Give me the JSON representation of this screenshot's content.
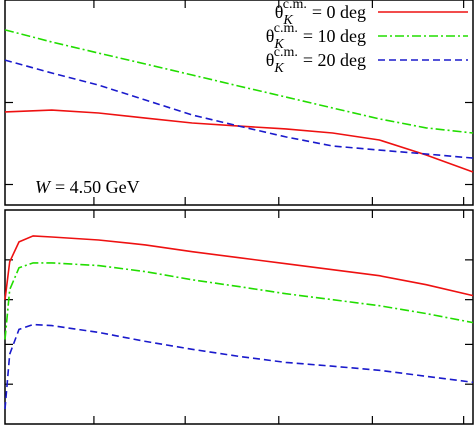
{
  "chart_data": [
    {
      "type": "line",
      "xlim": [
        0,
        10
      ],
      "ylim": [
        0,
        10
      ],
      "xticks": [
        1.9,
        3.85,
        5.85,
        7.85,
        9.8
      ],
      "yticks": [
        1,
        5
      ],
      "legend": "upper right",
      "legend_symbol": {
        "base": "θ",
        "sub": "K",
        "sup": "c.m."
      },
      "annotation": {
        "var": "W",
        "text": "= 4.50 GeV"
      },
      "x": [
        0,
        1,
        2,
        3,
        4,
        5,
        6,
        7,
        8,
        9,
        10
      ],
      "series": [
        {
          "name": "= 0 deg",
          "color": "#ee1111",
          "dash": "solid",
          "values": [
            4.54,
            4.63,
            4.49,
            4.24,
            4.0,
            3.85,
            3.71,
            3.51,
            3.17,
            2.44,
            1.61
          ]
        },
        {
          "name": "= 10 deg",
          "color": "#22dd00",
          "dash": "dashdot",
          "values": [
            8.54,
            7.95,
            7.41,
            6.88,
            6.34,
            5.8,
            5.27,
            4.73,
            4.2,
            3.76,
            3.51
          ]
        },
        {
          "name": "= 20 deg",
          "color": "#1a1acc",
          "dash": "dashed",
          "values": [
            7.07,
            6.44,
            5.85,
            5.12,
            4.39,
            3.85,
            3.32,
            2.88,
            2.68,
            2.49,
            2.29
          ]
        }
      ]
    },
    {
      "type": "line",
      "xlim": [
        0,
        10
      ],
      "ylim": [
        0,
        10
      ],
      "xticks": [
        1.9,
        3.85,
        5.85,
        7.85,
        9.8
      ],
      "yticks": [
        1.86,
        3.72,
        5.81,
        7.67
      ],
      "x": [
        0,
        0.1,
        0.3,
        0.6,
        1,
        2,
        3,
        4,
        5,
        6,
        7,
        8,
        9,
        10
      ],
      "series": [
        {
          "color": "#ee1111",
          "dash": "solid",
          "values": [
            5.81,
            7.58,
            8.51,
            8.79,
            8.74,
            8.6,
            8.37,
            8.05,
            7.77,
            7.49,
            7.21,
            6.93,
            6.51,
            6.0
          ]
        },
        {
          "color": "#22dd00",
          "dash": "dashdot",
          "values": [
            3.95,
            6.28,
            7.3,
            7.53,
            7.53,
            7.4,
            7.12,
            6.74,
            6.42,
            6.09,
            5.81,
            5.53,
            5.16,
            4.74
          ]
        },
        {
          "color": "#1a1acc",
          "dash": "dashed",
          "values": [
            0.7,
            3.26,
            4.42,
            4.65,
            4.6,
            4.28,
            3.86,
            3.49,
            3.16,
            2.88,
            2.7,
            2.51,
            2.23,
            1.95
          ]
        }
      ]
    }
  ]
}
